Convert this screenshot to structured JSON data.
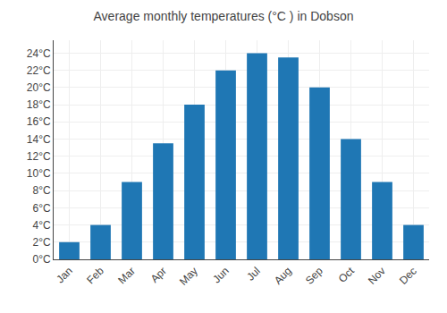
{
  "chart_data": {
    "type": "bar",
    "title": "Average monthly temperatures (°C ) in Dobson",
    "categories": [
      "Jan",
      "Feb",
      "Mar",
      "Apr",
      "May",
      "Jun",
      "Jul",
      "Aug",
      "Sep",
      "Oct",
      "Nov",
      "Dec"
    ],
    "values": [
      2,
      4,
      9,
      13.5,
      18,
      22,
      24,
      23.5,
      20,
      14,
      9,
      4
    ],
    "ylim": [
      0,
      25.5
    ],
    "yticks": [
      {
        "value": 0,
        "label": "0°C"
      },
      {
        "value": 2,
        "label": "2°C"
      },
      {
        "value": 4,
        "label": "4°C"
      },
      {
        "value": 6,
        "label": "6°C"
      },
      {
        "value": 8,
        "label": "8°C"
      },
      {
        "value": 10,
        "label": "10°C"
      },
      {
        "value": 12,
        "label": "12°C"
      },
      {
        "value": 14,
        "label": "14°C"
      },
      {
        "value": 16,
        "label": "16°C"
      },
      {
        "value": 18,
        "label": "18°C"
      },
      {
        "value": 20,
        "label": "20°C"
      },
      {
        "value": 22,
        "label": "22°C"
      },
      {
        "value": 24,
        "label": "24°C"
      }
    ],
    "grid": true
  }
}
